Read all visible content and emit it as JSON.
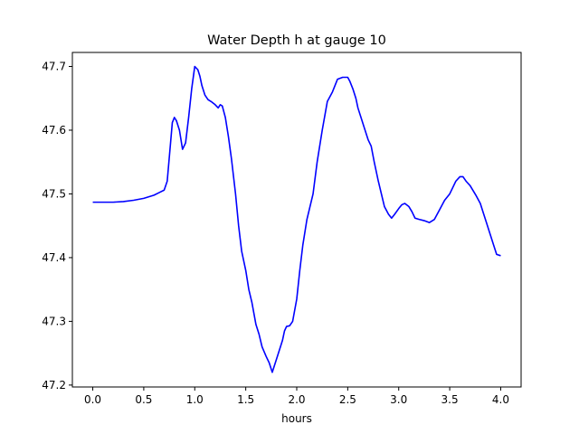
{
  "chart_data": {
    "type": "line",
    "title": "Water Depth h at gauge 10",
    "xlabel": "hours",
    "ylabel": "",
    "xlim": [
      -0.2,
      4.2
    ],
    "ylim": [
      47.197,
      47.722
    ],
    "xticks": [
      0.0,
      0.5,
      1.0,
      1.5,
      2.0,
      2.5,
      3.0,
      3.5,
      4.0
    ],
    "xtick_labels": [
      "0.0",
      "0.5",
      "1.0",
      "1.5",
      "2.0",
      "2.5",
      "3.0",
      "3.5",
      "4.0"
    ],
    "yticks": [
      47.2,
      47.3,
      47.4,
      47.5,
      47.6,
      47.7
    ],
    "ytick_labels": [
      "47.2",
      "47.3",
      "47.4",
      "47.5",
      "47.6",
      "47.7"
    ],
    "grid": false,
    "series": [
      {
        "color": "#0000ff",
        "x": [
          0.0,
          0.1,
          0.2,
          0.3,
          0.4,
          0.5,
          0.6,
          0.65,
          0.7,
          0.73,
          0.76,
          0.78,
          0.8,
          0.82,
          0.85,
          0.88,
          0.91,
          0.94,
          0.97,
          1.0,
          1.03,
          1.05,
          1.07,
          1.1,
          1.13,
          1.16,
          1.2,
          1.23,
          1.25,
          1.27,
          1.3,
          1.33,
          1.36,
          1.4,
          1.43,
          1.46,
          1.5,
          1.53,
          1.56,
          1.6,
          1.63,
          1.66,
          1.7,
          1.73,
          1.76,
          1.8,
          1.83,
          1.86,
          1.88,
          1.9,
          1.93,
          1.96,
          2.0,
          2.03,
          2.06,
          2.1,
          2.13,
          2.16,
          2.2,
          2.25,
          2.3,
          2.35,
          2.4,
          2.45,
          2.5,
          2.52,
          2.55,
          2.58,
          2.6,
          2.63,
          2.66,
          2.7,
          2.73,
          2.76,
          2.8,
          2.83,
          2.86,
          2.9,
          2.93,
          2.96,
          3.0,
          3.03,
          3.06,
          3.1,
          3.13,
          3.16,
          3.2,
          3.25,
          3.3,
          3.35,
          3.4,
          3.45,
          3.5,
          3.53,
          3.56,
          3.6,
          3.63,
          3.66,
          3.7,
          3.73,
          3.76,
          3.8,
          3.83,
          3.86,
          3.9,
          3.93,
          3.96,
          4.0
        ],
        "values": [
          47.487,
          47.487,
          47.487,
          47.488,
          47.49,
          47.493,
          47.498,
          47.502,
          47.506,
          47.52,
          47.575,
          47.612,
          47.62,
          47.615,
          47.6,
          47.57,
          47.58,
          47.62,
          47.665,
          47.7,
          47.695,
          47.685,
          47.67,
          47.655,
          47.648,
          47.645,
          47.64,
          47.635,
          47.64,
          47.638,
          47.62,
          47.59,
          47.555,
          47.5,
          47.45,
          47.41,
          47.38,
          47.35,
          47.33,
          47.295,
          47.28,
          47.26,
          47.245,
          47.235,
          47.22,
          47.24,
          47.255,
          47.27,
          47.285,
          47.292,
          47.293,
          47.3,
          47.335,
          47.38,
          47.42,
          47.46,
          47.48,
          47.5,
          47.55,
          47.6,
          47.645,
          47.66,
          47.68,
          47.683,
          47.683,
          47.677,
          47.665,
          47.65,
          47.635,
          47.62,
          47.605,
          47.585,
          47.575,
          47.55,
          47.52,
          47.5,
          47.48,
          47.468,
          47.462,
          47.468,
          47.477,
          47.483,
          47.485,
          47.48,
          47.472,
          47.462,
          47.46,
          47.458,
          47.455,
          47.46,
          47.475,
          47.49,
          47.5,
          47.51,
          47.52,
          47.527,
          47.527,
          47.52,
          47.513,
          47.505,
          47.497,
          47.485,
          47.47,
          47.455,
          47.435,
          47.42,
          47.405,
          47.403
        ]
      }
    ]
  }
}
